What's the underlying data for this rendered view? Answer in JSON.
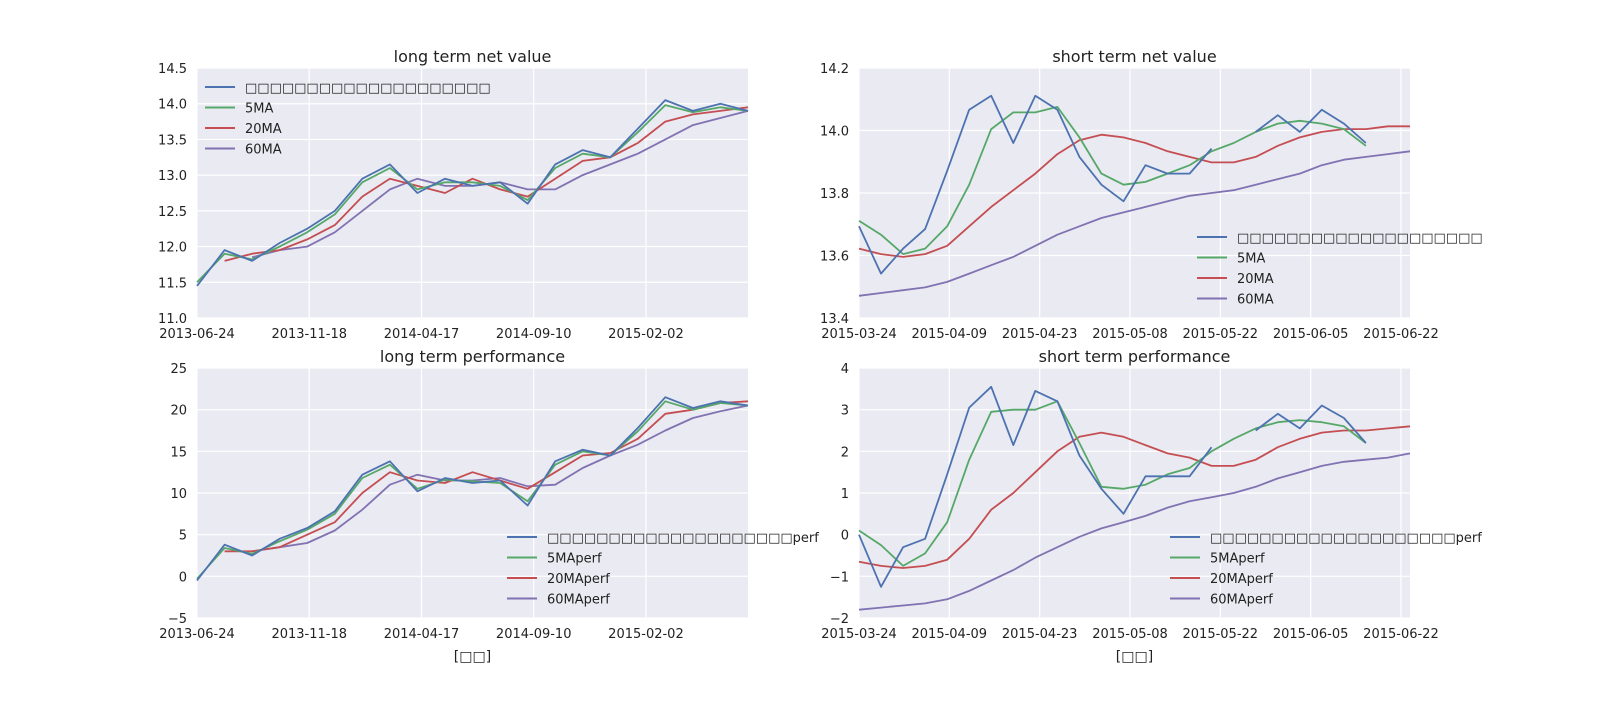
{
  "chart_data": [
    {
      "type": "line",
      "title": "long term net value",
      "xlabel": "",
      "ylabel": "",
      "x_ticks": [
        "2013-06-24",
        "2013-11-18",
        "2014-04-17",
        "2014-09-10",
        "2015-02-02"
      ],
      "x_tick_positions": [
        0,
        0.2037,
        0.4074,
        0.6111,
        0.8148
      ],
      "ylim": [
        11.0,
        14.5
      ],
      "yticks": [
        "11.0",
        "11.5",
        "12.0",
        "12.5",
        "13.0",
        "13.5",
        "14.0",
        "14.5"
      ],
      "grid": true,
      "legend_placement": "upper-left",
      "x": [
        0,
        0.05,
        0.1,
        0.15,
        0.2,
        0.25,
        0.3,
        0.35,
        0.4,
        0.45,
        0.5,
        0.55,
        0.6,
        0.65,
        0.7,
        0.75,
        0.8,
        0.85,
        0.9,
        0.95,
        1.0
      ],
      "series": [
        {
          "name": "□□□□□□□□□□□□□□□□□□□□",
          "color": "#4c72b0",
          "values": [
            11.45,
            11.95,
            11.8,
            12.05,
            12.25,
            12.5,
            12.95,
            13.15,
            12.75,
            12.95,
            12.85,
            12.9,
            12.6,
            13.15,
            13.35,
            13.25,
            13.65,
            14.05,
            13.9,
            14.0,
            13.9
          ]
        },
        {
          "name": "5MA",
          "color": "#55a868",
          "values": [
            11.5,
            11.9,
            11.82,
            12.0,
            12.2,
            12.45,
            12.9,
            13.1,
            12.8,
            12.9,
            12.9,
            12.85,
            12.65,
            13.1,
            13.3,
            13.25,
            13.6,
            13.98,
            13.88,
            13.95,
            13.9
          ]
        },
        {
          "name": "20MA",
          "color": "#c44e52",
          "values": [
            null,
            11.8,
            11.9,
            11.95,
            12.1,
            12.3,
            12.7,
            12.95,
            12.85,
            12.75,
            12.95,
            12.8,
            12.7,
            12.95,
            13.2,
            13.25,
            13.45,
            13.75,
            13.85,
            13.9,
            13.95
          ]
        },
        {
          "name": "60MA",
          "color": "#8172b2",
          "values": [
            null,
            null,
            11.85,
            11.95,
            12.0,
            12.2,
            12.5,
            12.8,
            12.95,
            12.85,
            12.85,
            12.9,
            12.8,
            12.8,
            13.0,
            13.15,
            13.3,
            13.5,
            13.7,
            13.8,
            13.9
          ]
        }
      ]
    },
    {
      "type": "line",
      "title": "short term net value",
      "xlabel": "",
      "ylabel": "",
      "x_ticks": [
        "2015-03-24",
        "2015-04-09",
        "2015-04-23",
        "2015-05-08",
        "2015-05-22",
        "2015-06-05",
        "2015-06-22"
      ],
      "x_tick_positions": [
        0,
        0.1639,
        0.3279,
        0.4918,
        0.6557,
        0.8197,
        0.9836
      ],
      "ylim": [
        13.3,
        14.2
      ],
      "yticks": [
        "13.4",
        "13.6",
        "13.8",
        "14.0",
        "14.2"
      ],
      "grid": true,
      "legend_placement": "lower-right",
      "x": [
        0,
        0.04,
        0.08,
        0.12,
        0.16,
        0.2,
        0.24,
        0.28,
        0.32,
        0.36,
        0.4,
        0.44,
        0.48,
        0.52,
        0.56,
        0.6,
        0.64,
        0.68,
        0.72,
        0.76,
        0.8,
        0.84,
        0.88,
        0.92,
        0.96,
        1.0
      ],
      "series": [
        {
          "name": "□□□□□□□□□□□□□□□□□□□□",
          "color": "#4c72b0",
          "values": [
            13.63,
            13.46,
            13.55,
            13.62,
            13.83,
            14.05,
            14.1,
            13.93,
            14.1,
            14.05,
            13.88,
            13.78,
            13.72,
            13.85,
            13.82,
            13.82,
            13.91,
            null,
            13.97,
            14.03,
            13.97,
            14.05,
            14.0,
            13.93,
            null,
            null
          ]
        },
        {
          "name": "5MA",
          "color": "#55a868",
          "values": [
            13.65,
            13.6,
            13.53,
            13.55,
            13.63,
            13.78,
            13.98,
            14.04,
            14.04,
            14.06,
            13.95,
            13.82,
            13.78,
            13.79,
            13.82,
            13.85,
            13.9,
            13.93,
            13.97,
            14.0,
            14.01,
            14.0,
            13.98,
            13.92,
            null,
            null
          ]
        },
        {
          "name": "20MA",
          "color": "#c44e52",
          "values": [
            13.55,
            13.53,
            13.52,
            13.53,
            13.56,
            13.63,
            13.7,
            13.76,
            13.82,
            13.89,
            13.94,
            13.96,
            13.95,
            13.93,
            13.9,
            13.88,
            13.86,
            13.86,
            13.88,
            13.92,
            13.95,
            13.97,
            13.98,
            13.98,
            13.99,
            13.99
          ]
        },
        {
          "name": "60MA",
          "color": "#8172b2",
          "values": [
            13.38,
            13.39,
            13.4,
            13.41,
            13.43,
            13.46,
            13.49,
            13.52,
            13.56,
            13.6,
            13.63,
            13.66,
            13.68,
            13.7,
            13.72,
            13.74,
            13.75,
            13.76,
            13.78,
            13.8,
            13.82,
            13.85,
            13.87,
            13.88,
            13.89,
            13.9
          ]
        }
      ]
    },
    {
      "type": "line",
      "title": "long term performance",
      "xlabel": "[□□]",
      "ylabel": "",
      "x_ticks": [
        "2013-06-24",
        "2013-11-18",
        "2014-04-17",
        "2014-09-10",
        "2015-02-02"
      ],
      "x_tick_positions": [
        0,
        0.2037,
        0.4074,
        0.6111,
        0.8148
      ],
      "ylim": [
        -5,
        25
      ],
      "yticks": [
        "−5",
        "0",
        "5",
        "10",
        "15",
        "20",
        "25"
      ],
      "grid": true,
      "legend_placement": "lower-right",
      "x": [
        0,
        0.05,
        0.1,
        0.15,
        0.2,
        0.25,
        0.3,
        0.35,
        0.4,
        0.45,
        0.5,
        0.55,
        0.6,
        0.65,
        0.7,
        0.75,
        0.8,
        0.85,
        0.9,
        0.95,
        1.0
      ],
      "series": [
        {
          "name": "□□□□□□□□□□□□□□□□□□□□perf",
          "color": "#4c72b0",
          "values": [
            -0.5,
            3.8,
            2.5,
            4.5,
            5.8,
            7.8,
            12.2,
            13.8,
            10.2,
            11.8,
            11.2,
            11.5,
            8.5,
            13.8,
            15.2,
            14.5,
            17.8,
            21.5,
            20.2,
            21.0,
            20.5
          ]
        },
        {
          "name": "5MAperf",
          "color": "#55a868",
          "values": [
            -0.3,
            3.4,
            2.7,
            4.2,
            5.6,
            7.5,
            11.8,
            13.4,
            10.5,
            11.6,
            11.4,
            11.2,
            9.0,
            13.4,
            15.0,
            14.5,
            17.4,
            21.0,
            20.0,
            20.8,
            20.5
          ]
        },
        {
          "name": "20MAperf",
          "color": "#c44e52",
          "values": [
            null,
            3.0,
            3.0,
            3.5,
            5.0,
            6.5,
            10.0,
            12.5,
            11.5,
            11.2,
            12.5,
            11.5,
            10.5,
            12.5,
            14.5,
            14.8,
            16.5,
            19.5,
            20.0,
            20.8,
            21.0
          ]
        },
        {
          "name": "60MAperf",
          "color": "#8172b2",
          "values": [
            null,
            null,
            3.0,
            3.5,
            4.0,
            5.5,
            8.0,
            11.0,
            12.2,
            11.5,
            11.5,
            11.8,
            10.8,
            11.0,
            13.0,
            14.5,
            15.8,
            17.5,
            19.0,
            19.8,
            20.5
          ]
        }
      ]
    },
    {
      "type": "line",
      "title": "short term performance",
      "xlabel": "[□□]",
      "ylabel": "",
      "x_ticks": [
        "2015-03-24",
        "2015-04-09",
        "2015-04-23",
        "2015-05-08",
        "2015-05-22",
        "2015-06-05",
        "2015-06-22"
      ],
      "x_tick_positions": [
        0,
        0.1639,
        0.3279,
        0.4918,
        0.6557,
        0.8197,
        0.9836
      ],
      "ylim": [
        -2,
        4
      ],
      "yticks": [
        "−2",
        "−1",
        "0",
        "1",
        "2",
        "3",
        "4"
      ],
      "grid": true,
      "legend_placement": "lower-right",
      "x": [
        0,
        0.04,
        0.08,
        0.12,
        0.16,
        0.2,
        0.24,
        0.28,
        0.32,
        0.36,
        0.4,
        0.44,
        0.48,
        0.52,
        0.56,
        0.6,
        0.64,
        0.68,
        0.72,
        0.76,
        0.8,
        0.84,
        0.88,
        0.92,
        0.96,
        1.0
      ],
      "series": [
        {
          "name": "□□□□□□□□□□□□□□□□□□□□perf",
          "color": "#4c72b0",
          "values": [
            0.0,
            -1.25,
            -0.3,
            -0.1,
            1.45,
            3.05,
            3.55,
            2.15,
            3.45,
            3.2,
            1.9,
            1.1,
            0.5,
            1.4,
            1.4,
            1.4,
            2.1,
            null,
            2.5,
            2.9,
            2.55,
            3.1,
            2.8,
            2.2,
            null,
            null
          ]
        },
        {
          "name": "5MAperf",
          "color": "#55a868",
          "values": [
            0.1,
            -0.25,
            -0.75,
            -0.45,
            0.3,
            1.8,
            2.95,
            3.0,
            3.0,
            3.2,
            2.2,
            1.15,
            1.1,
            1.2,
            1.45,
            1.6,
            2.0,
            2.3,
            2.55,
            2.7,
            2.75,
            2.7,
            2.6,
            2.2,
            null,
            null
          ]
        },
        {
          "name": "20MAperf",
          "color": "#c44e52",
          "values": [
            -0.65,
            -0.75,
            -0.8,
            -0.75,
            -0.6,
            -0.1,
            0.6,
            1.0,
            1.5,
            2.0,
            2.35,
            2.45,
            2.35,
            2.15,
            1.95,
            1.85,
            1.65,
            1.65,
            1.8,
            2.1,
            2.3,
            2.45,
            2.5,
            2.5,
            2.55,
            2.6
          ]
        },
        {
          "name": "60MAperf",
          "color": "#8172b2",
          "values": [
            -1.8,
            -1.75,
            -1.7,
            -1.65,
            -1.55,
            -1.35,
            -1.1,
            -0.85,
            -0.55,
            -0.3,
            -0.05,
            0.15,
            0.3,
            0.45,
            0.65,
            0.8,
            0.9,
            1.0,
            1.15,
            1.35,
            1.5,
            1.65,
            1.75,
            1.8,
            1.85,
            1.95
          ]
        }
      ]
    }
  ]
}
